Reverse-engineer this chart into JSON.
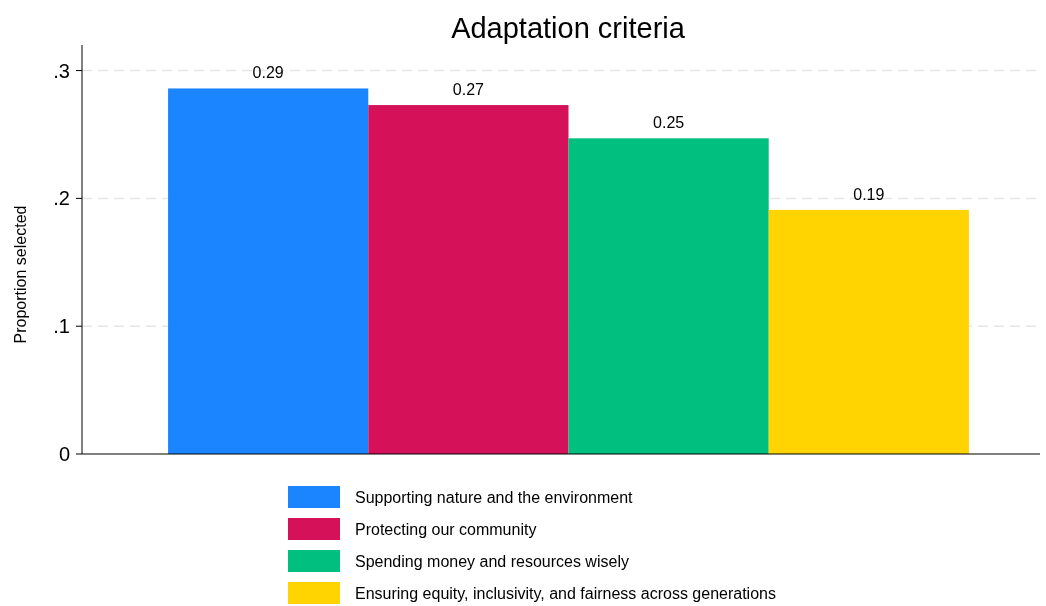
{
  "chart_data": {
    "type": "bar",
    "title": "Adaptation criteria",
    "ylabel": "Proportion selected",
    "categories": [
      null
    ],
    "series": [
      {
        "name": "Supporting nature and the environment",
        "color": "#1a85ff",
        "values": [
          0.286
        ],
        "value_labels": [
          "0.29"
        ]
      },
      {
        "name": "Protecting our community",
        "color": "#d41159",
        "values": [
          0.273
        ],
        "value_labels": [
          "0.27"
        ]
      },
      {
        "name": "Spending money and resources wisely",
        "color": "#00bf7f",
        "values": [
          0.247
        ],
        "value_labels": [
          "0.25"
        ]
      },
      {
        "name": "Ensuring equity, inclusivity, and fairness across generations",
        "color": "#ffd400",
        "values": [
          0.191
        ],
        "value_labels": [
          "0.19"
        ]
      }
    ],
    "ylim": [
      0,
      0.32
    ],
    "yticks": [
      {
        "value": 0,
        "label": "0"
      },
      {
        "value": 0.1,
        "label": ".1"
      },
      {
        "value": 0.2,
        "label": ".2"
      },
      {
        "value": 0.3,
        "label": ".3"
      }
    ],
    "grid": "y",
    "legend": "bottom"
  }
}
